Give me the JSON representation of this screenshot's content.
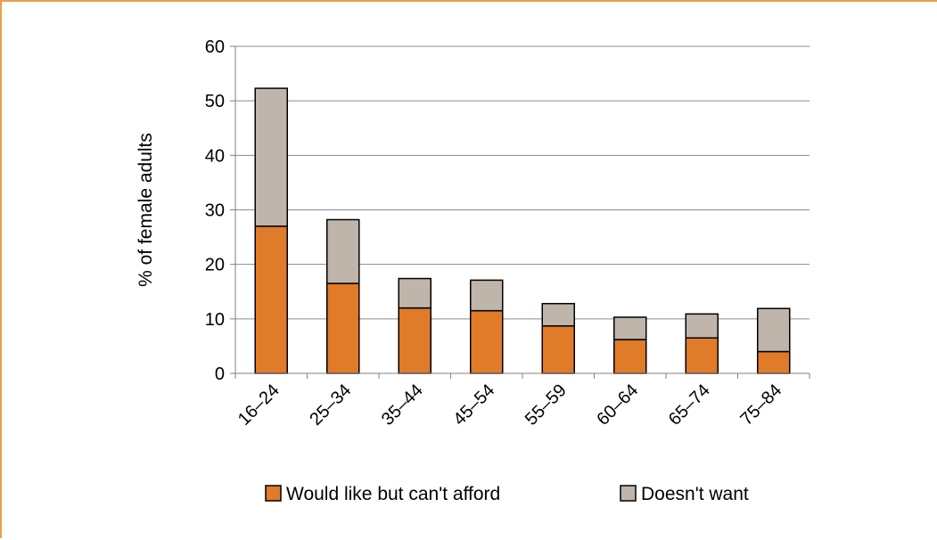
{
  "chart_data": {
    "type": "bar",
    "stacked": true,
    "categories": [
      "16–24",
      "25–34",
      "35–44",
      "45–54",
      "55–59",
      "60–64",
      "65–74",
      "75–84"
    ],
    "series": [
      {
        "name": "Would like but can't afford",
        "color": "#e07b2a",
        "values": [
          27,
          16.5,
          12,
          11.5,
          8.7,
          6.2,
          6.5,
          4
        ]
      },
      {
        "name": "Doesn't want",
        "color": "#bfb5ab",
        "values": [
          25.3,
          11.7,
          5.4,
          5.6,
          4.1,
          4.1,
          4.4,
          7.9
        ]
      }
    ],
    "title": "",
    "xlabel": "",
    "ylabel": "% of female adults",
    "ylim": [
      0,
      60
    ],
    "yticks": [
      0,
      10,
      20,
      30,
      40,
      50,
      60
    ],
    "grid": true,
    "legend_position": "bottom"
  }
}
